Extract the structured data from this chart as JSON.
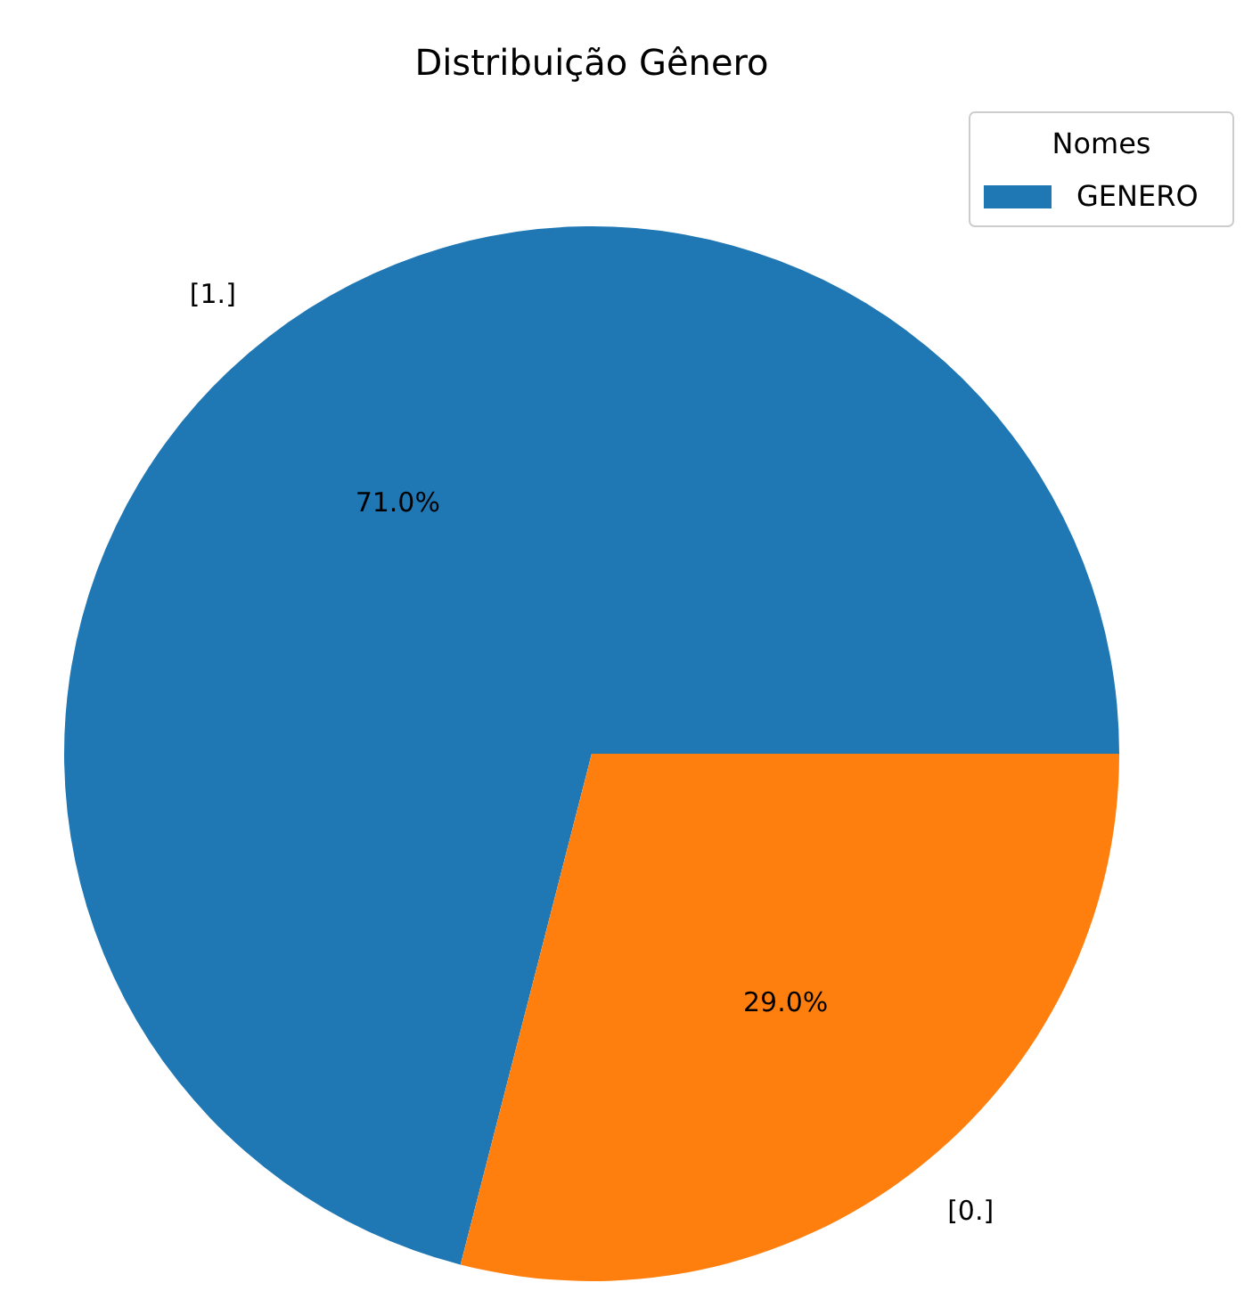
{
  "chart_data": {
    "type": "pie",
    "title": "Distribuição Gênero",
    "legend_title": "Nomes",
    "legend": "top right",
    "categories": [
      "[1.]",
      "[0.]"
    ],
    "series": [
      {
        "name": "GENERO",
        "values": [
          71.0,
          29.0
        ],
        "value_labels": [
          "71.0%",
          "29.0%"
        ],
        "colors": [
          "#1f77b4",
          "#ff7f0e"
        ]
      }
    ]
  }
}
